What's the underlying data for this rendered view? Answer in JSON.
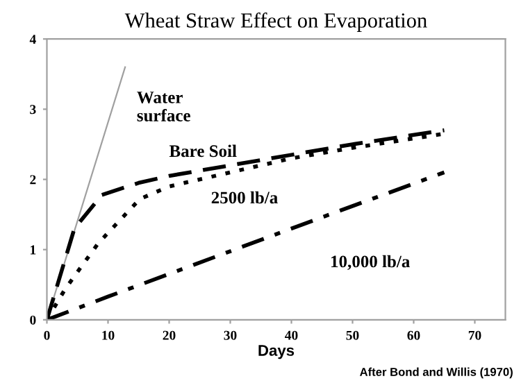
{
  "chart_data": {
    "type": "line",
    "title": "Wheat Straw Effect on Evaporation",
    "xlabel": "Days",
    "xlim": [
      0,
      75
    ],
    "ylim": [
      0,
      4
    ],
    "xticks": [
      0,
      10,
      20,
      30,
      40,
      50,
      60,
      70
    ],
    "yticks": [
      0,
      1,
      2,
      3,
      4
    ],
    "grid": false,
    "legend": false,
    "marker": "none",
    "series": [
      {
        "name": "Water\nsurface",
        "color": "#a0a0a0",
        "line_style": "solid",
        "x": [
          0,
          12.8
        ],
        "values": [
          0,
          3.6
        ]
      },
      {
        "name": "Bare Soil",
        "color": "#000000",
        "line_style": "dashed",
        "x": [
          0,
          4.5,
          9,
          15,
          20,
          30,
          40,
          50,
          65
        ],
        "values": [
          0,
          1.3,
          1.78,
          1.95,
          2.05,
          2.2,
          2.35,
          2.5,
          2.7
        ]
      },
      {
        "name": "2500 lb/a",
        "color": "#000000",
        "line_style": "dotted",
        "x": [
          0,
          3,
          8.4,
          15.2,
          20,
          30,
          40,
          50,
          65
        ],
        "values": [
          0,
          0.44,
          1.09,
          1.72,
          1.9,
          2.1,
          2.3,
          2.45,
          2.65
        ]
      },
      {
        "name": "10,000 lb/a",
        "color": "#000000",
        "line_style": "dashdot",
        "x": [
          0,
          10,
          40,
          65
        ],
        "values": [
          0,
          0.33,
          1.3,
          2.1
        ]
      }
    ],
    "annotations": [
      "After Bond and Willis (1970)"
    ]
  }
}
